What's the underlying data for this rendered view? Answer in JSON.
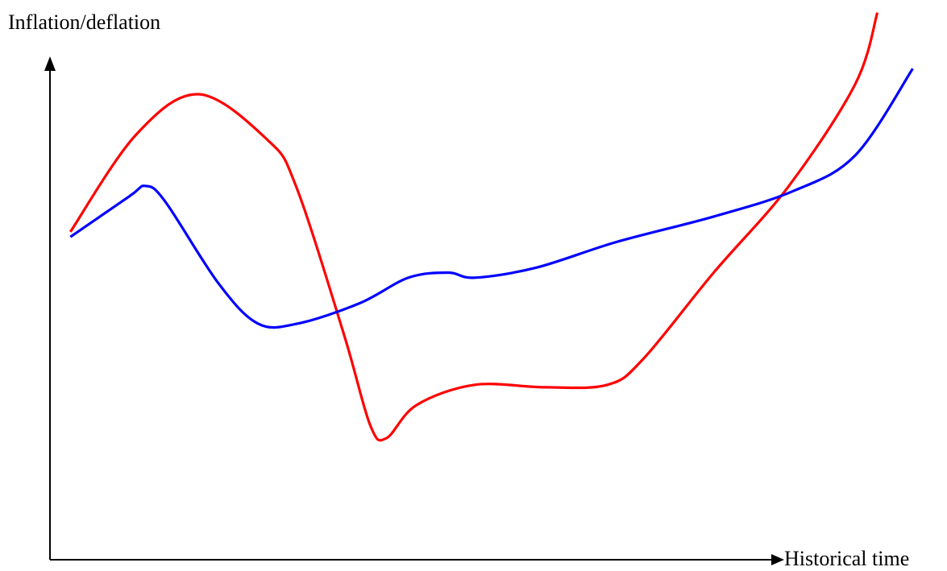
{
  "chart_data": {
    "type": "line",
    "title": "",
    "xlabel": "Historical time",
    "ylabel": "Inflation/deflation",
    "xlim": [
      0,
      100
    ],
    "ylim": [
      0,
      100
    ],
    "grid": false,
    "legend": "none",
    "ticks": "none",
    "series": [
      {
        "color": "#ff0000",
        "points": [
          [
            2.3,
            58
          ],
          [
            9.7,
            77
          ],
          [
            16.8,
            85
          ],
          [
            24.6,
            76
          ],
          [
            27.8,
            67
          ],
          [
            33.2,
            38
          ],
          [
            36.2,
            20
          ],
          [
            38.0,
            17.5
          ],
          [
            41.4,
            24
          ],
          [
            48.0,
            28
          ],
          [
            56.0,
            27.5
          ],
          [
            63.0,
            28
          ],
          [
            67.0,
            33
          ],
          [
            75.0,
            50
          ],
          [
            83.5,
            67
          ],
          [
            91.0,
            87
          ],
          [
            93.5,
            101
          ]
        ]
      },
      {
        "color": "#0000ff",
        "points": [
          [
            2.3,
            57
          ],
          [
            9.0,
            65
          ],
          [
            10.8,
            67
          ],
          [
            13.0,
            64
          ],
          [
            19.0,
            48
          ],
          [
            23.5,
            40
          ],
          [
            28.0,
            40
          ],
          [
            35.0,
            44
          ],
          [
            40.5,
            49
          ],
          [
            45.0,
            50
          ],
          [
            48.0,
            49
          ],
          [
            55.0,
            51
          ],
          [
            64.0,
            56
          ],
          [
            75.0,
            61
          ],
          [
            84.0,
            66
          ],
          [
            91.0,
            73
          ],
          [
            97.5,
            90
          ]
        ]
      }
    ]
  },
  "colors": {
    "axis": "#000000",
    "background": "#ffffff"
  }
}
